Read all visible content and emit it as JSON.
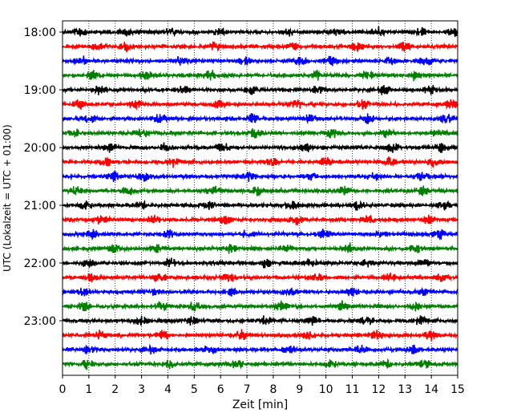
{
  "chart_data": {
    "type": "line",
    "title": "",
    "xlabel": "Zeit  [min]",
    "ylabel": "UTC (Lokalzeit = UTC + 01:00)",
    "xlim": [
      0,
      15
    ],
    "x_ticks": [
      "0",
      "1",
      "2",
      "3",
      "4",
      "5",
      "6",
      "7",
      "8",
      "9",
      "10",
      "11",
      "12",
      "13",
      "14",
      "15"
    ],
    "y_tick_labels": [
      "18:00",
      "19:00",
      "20:00",
      "21:00",
      "22:00",
      "23:00"
    ],
    "grid": "vertical dotted lines at each minute",
    "trace_colors": [
      "#000000",
      "#ff0000",
      "#0000ff",
      "#007f00"
    ],
    "traces_per_hour": 4,
    "trace_start_times": [
      "18:00",
      "18:15",
      "18:30",
      "18:45",
      "19:00",
      "19:15",
      "19:30",
      "19:45",
      "20:00",
      "20:15",
      "20:30",
      "20:45",
      "21:00",
      "21:15",
      "21:30",
      "21:45",
      "22:00",
      "22:15",
      "22:30",
      "22:45",
      "23:00",
      "23:15",
      "23:30",
      "23:45"
    ],
    "trace_bursts": [
      [
        0.7,
        2.4,
        4.1,
        6.0,
        8.6,
        10.4,
        12.0,
        13.6,
        14.8
      ],
      [
        1.3,
        2.4,
        5.8,
        8.8,
        11.2,
        13.0
      ],
      [
        0.7,
        4.5,
        6.9,
        9.0,
        10.2,
        12.4,
        13.8
      ],
      [
        1.2,
        3.2,
        5.6,
        9.7,
        11.6,
        13.4
      ],
      [
        1.4,
        4.6,
        7.2,
        9.7,
        12.2,
        14.0
      ],
      [
        0.6,
        2.8,
        5.9,
        8.9,
        11.4,
        14.8
      ],
      [
        1.0,
        3.7,
        7.2,
        9.4,
        11.6,
        14.6
      ],
      [
        0.5,
        3.0,
        7.3,
        10.2,
        12.3,
        14.2
      ],
      [
        1.8,
        3.9,
        6.1,
        9.2,
        12.5,
        14.4
      ],
      [
        1.6,
        4.2,
        7.9,
        10.0,
        12.4,
        14.1
      ],
      [
        1.9,
        3.1,
        7.1,
        9.4,
        11.8,
        13.6
      ],
      [
        0.5,
        2.5,
        5.7,
        7.4,
        10.7,
        13.6
      ],
      [
        0.9,
        3.0,
        5.5,
        8.7,
        11.2,
        14.5
      ],
      [
        1.5,
        3.5,
        6.2,
        8.9,
        11.6,
        13.9
      ],
      [
        1.1,
        4.0,
        7.0,
        9.9,
        12.1,
        14.3
      ],
      [
        1.9,
        3.6,
        6.4,
        8.5,
        10.9,
        13.4
      ],
      [
        1.0,
        4.1,
        7.7,
        9.4,
        11.5,
        13.7
      ],
      [
        1.1,
        3.7,
        6.3,
        9.6,
        12.4,
        14.4
      ],
      [
        0.8,
        3.4,
        6.4,
        8.6,
        11.0,
        13.8
      ],
      [
        0.8,
        3.7,
        5.0,
        8.3,
        10.6,
        13.4
      ],
      [
        3.0,
        4.9,
        7.7,
        9.5,
        11.5,
        13.6
      ],
      [
        1.4,
        3.8,
        6.8,
        9.3,
        11.9,
        14.0
      ],
      [
        1.0,
        3.3,
        5.6,
        8.6,
        11.3,
        13.3
      ],
      [
        0.9,
        4.1,
        6.6,
        10.2,
        12.3,
        13.7
      ]
    ]
  }
}
